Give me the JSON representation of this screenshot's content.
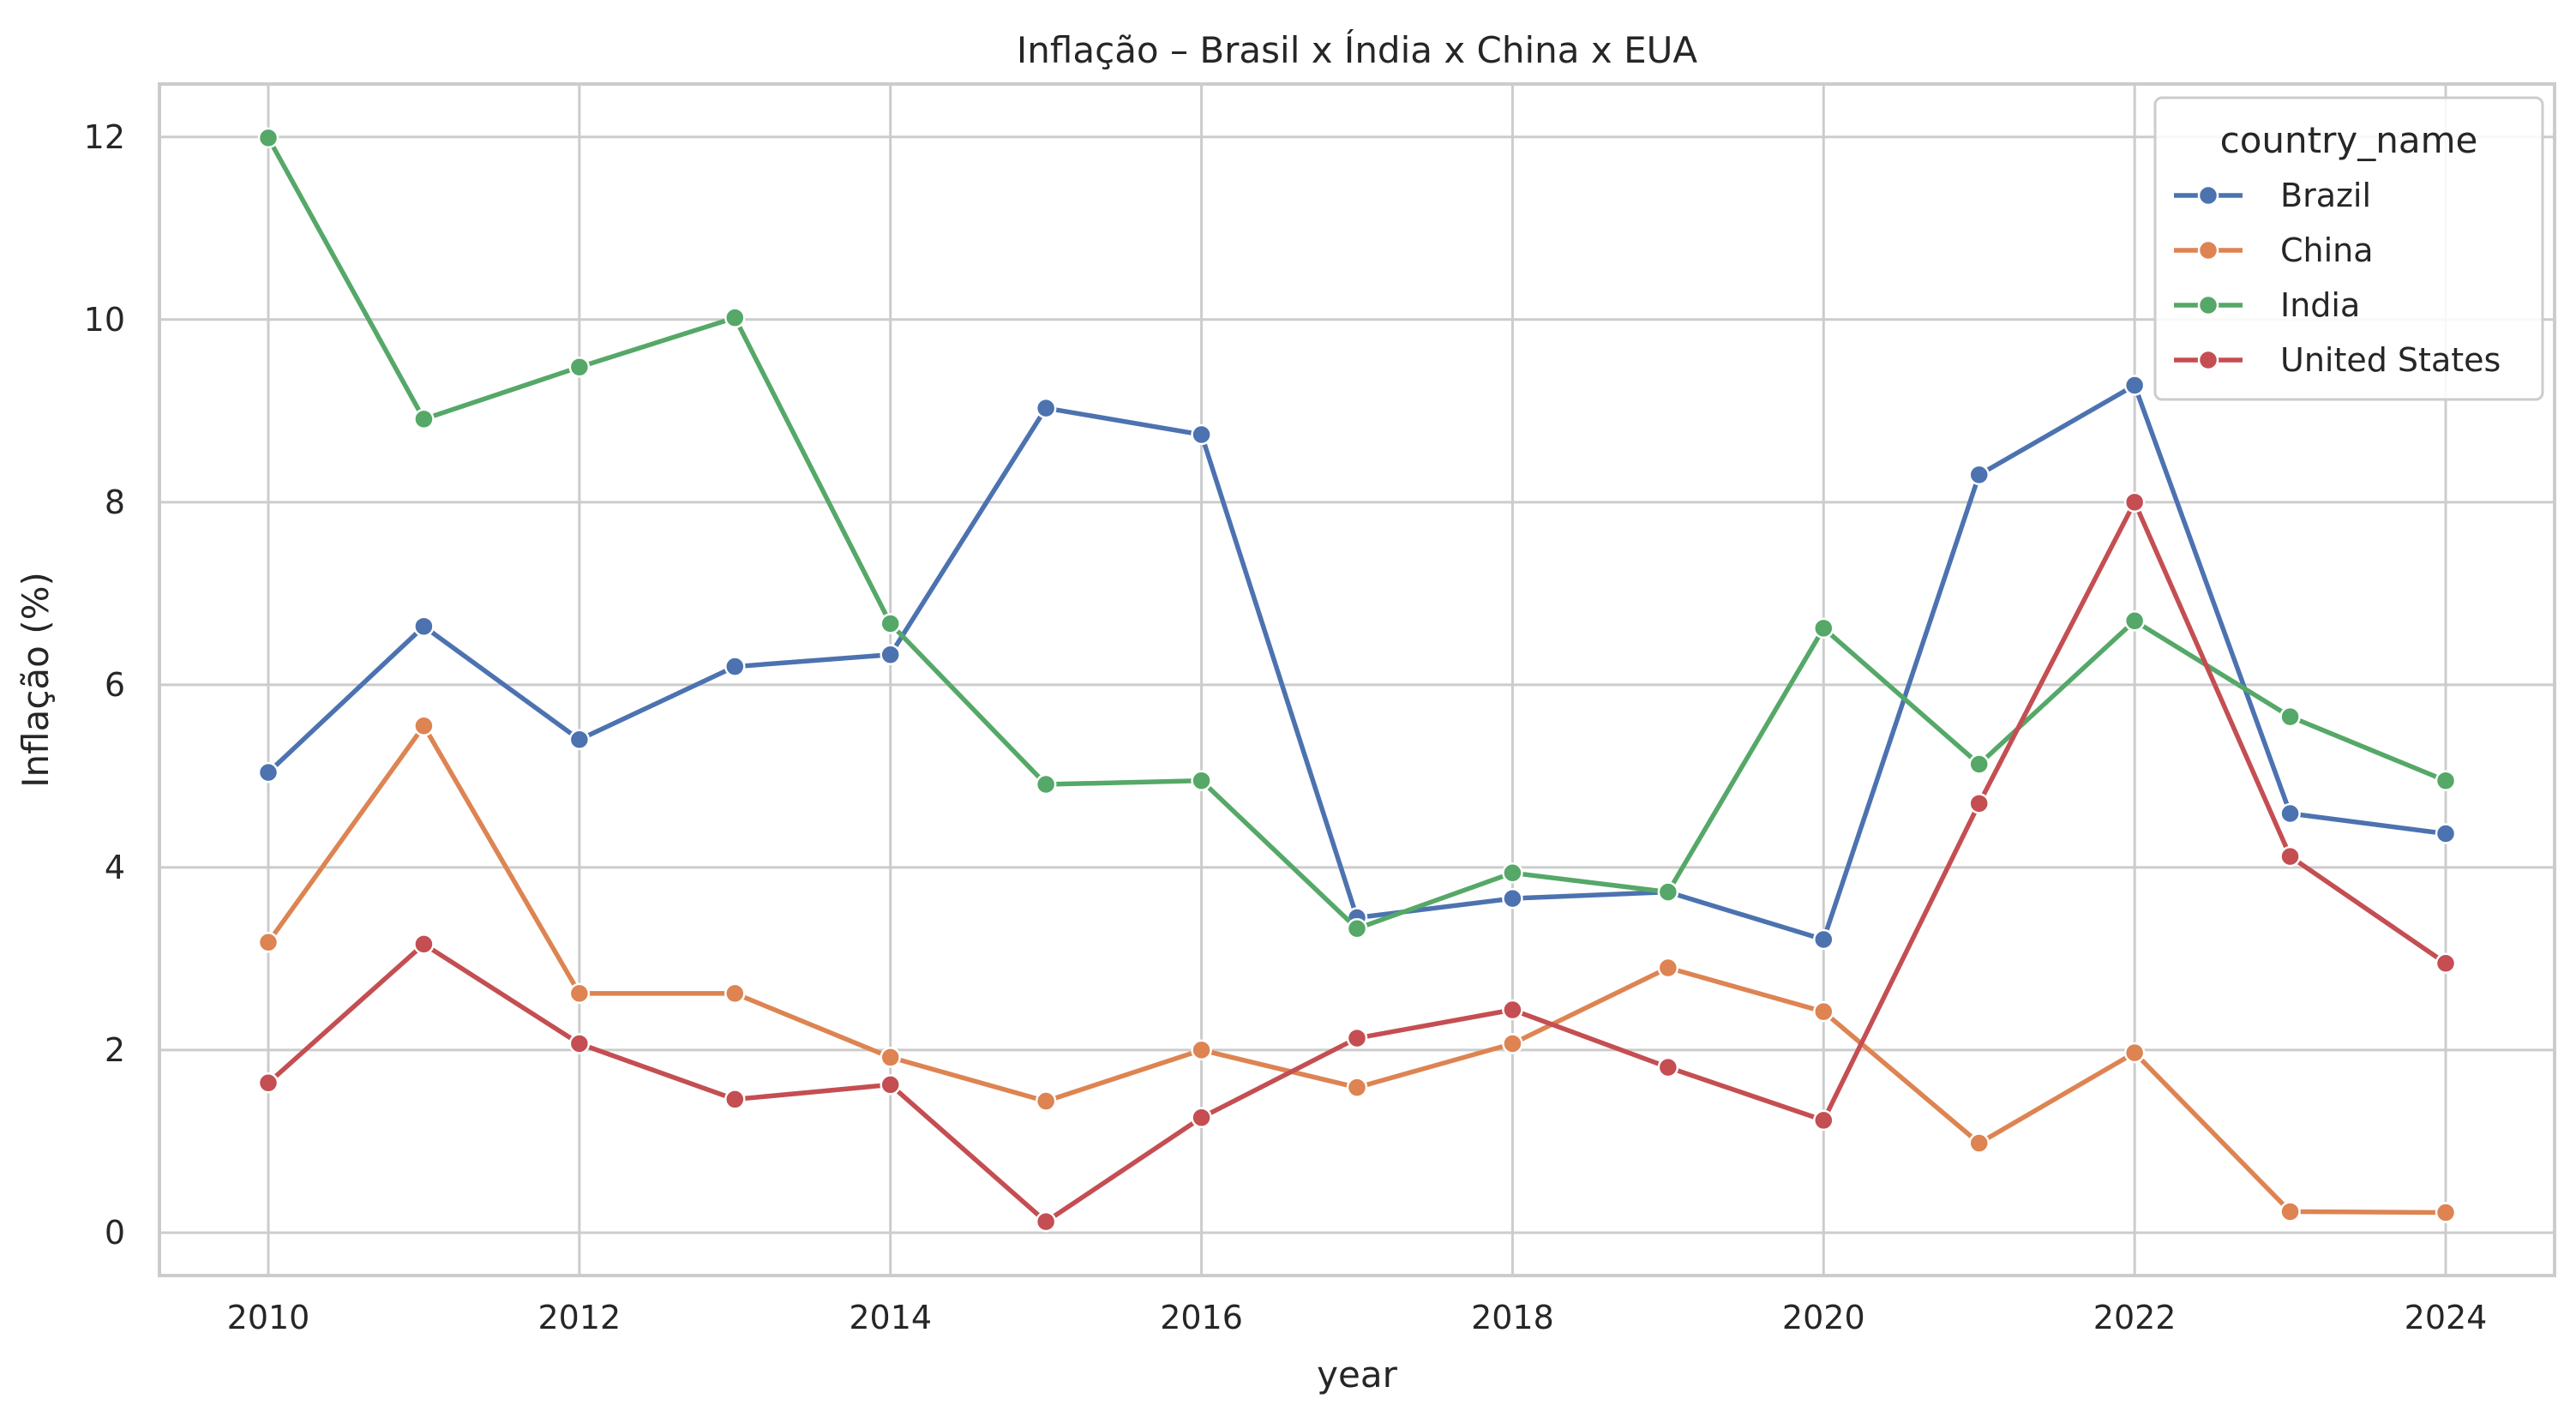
{
  "chart_data": {
    "type": "line",
    "title": "Inflação – Brasil x Índia x China x EUA",
    "xlabel": "year",
    "ylabel": "Inflação (%)",
    "xlim": [
      2009.3,
      2024.7
    ],
    "ylim": [
      -0.47,
      12.58
    ],
    "xticks": [
      2010,
      2012,
      2014,
      2016,
      2018,
      2020,
      2022,
      2024
    ],
    "yticks": [
      0,
      2,
      4,
      6,
      8,
      10,
      12
    ],
    "grid": true,
    "legend": {
      "title": "country_name",
      "placement": "top-right"
    },
    "x": [
      2010,
      2011,
      2012,
      2013,
      2014,
      2015,
      2016,
      2017,
      2018,
      2019,
      2020,
      2021,
      2022,
      2023,
      2024
    ],
    "series": [
      {
        "name": "Brazil",
        "color": "#4c72b0",
        "values": [
          5.04,
          6.64,
          5.4,
          6.2,
          6.33,
          9.03,
          8.74,
          3.45,
          3.66,
          3.73,
          3.21,
          8.3,
          9.28,
          4.59,
          4.37
        ]
      },
      {
        "name": "China",
        "color": "#dd8452",
        "values": [
          3.18,
          5.55,
          2.62,
          2.62,
          1.92,
          1.44,
          2.0,
          1.59,
          2.07,
          2.9,
          2.42,
          0.98,
          1.97,
          0.23,
          0.22
        ]
      },
      {
        "name": "India",
        "color": "#55a868",
        "values": [
          11.99,
          8.91,
          9.48,
          10.02,
          6.67,
          4.91,
          4.95,
          3.33,
          3.94,
          3.73,
          6.62,
          5.13,
          6.7,
          5.65,
          4.95
        ]
      },
      {
        "name": "United States",
        "color": "#c44e52",
        "values": [
          1.64,
          3.16,
          2.07,
          1.46,
          1.62,
          0.12,
          1.26,
          2.13,
          2.44,
          1.81,
          1.23,
          4.7,
          8.0,
          4.12,
          2.95
        ]
      }
    ]
  }
}
